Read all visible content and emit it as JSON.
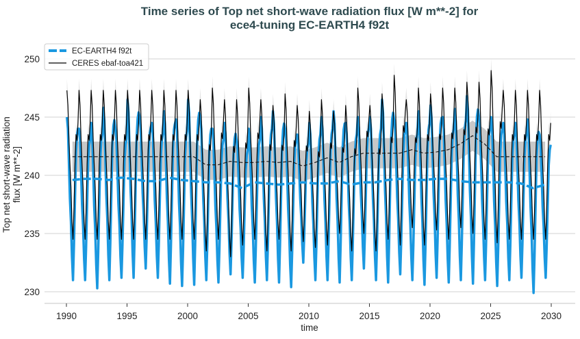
{
  "chart_data": {
    "type": "line",
    "title_lines": [
      "Time series of Top net short-wave radiation flux [W m**-2] for",
      "ece4-tuning EC-EARTH4 f92t"
    ],
    "xlabel": "time",
    "ylabel_lines": [
      "Top net short-wave radiation",
      "flux [W m**-2]"
    ],
    "xlim": [
      1988.8,
      2031.5
    ],
    "ylim": [
      229,
      251.5
    ],
    "xticks": [
      1990,
      1995,
      2000,
      2005,
      2010,
      2015,
      2020,
      2025,
      2030
    ],
    "yticks": [
      230,
      235,
      240,
      245,
      250
    ],
    "grid": "horizontal",
    "legend_placement": "top-left",
    "years": [
      1990,
      1991,
      1992,
      1993,
      1994,
      1995,
      1996,
      1997,
      1998,
      1999,
      2000,
      2001,
      2002,
      2003,
      2004,
      2005,
      2006,
      2007,
      2008,
      2009,
      2010,
      2011,
      2012,
      2013,
      2014,
      2015,
      2016,
      2017,
      2018,
      2019,
      2020,
      2021,
      2022,
      2023,
      2024,
      2025,
      2026,
      2027,
      2028,
      2029
    ],
    "series": [
      {
        "name": "EC-EARTH4 f92t",
        "color": "#1a98e0",
        "style": "monthly solid thick, annual mean dashed",
        "monthly_climatology_shape": [
          245,
          244,
          241,
          238,
          236,
          233,
          231,
          234,
          238,
          242,
          243.5,
          244
        ],
        "yearly_max": [
          245,
          244,
          244.5,
          245.8,
          244,
          246.5,
          245,
          244.5,
          245.5,
          244.8,
          246.5,
          245,
          244,
          244.5,
          243,
          244,
          245,
          245.5,
          244,
          243.5,
          244.5,
          245,
          245.5,
          244.5,
          245,
          245,
          246.5,
          244.8,
          244.5,
          245.5,
          246,
          245,
          245.7,
          246.8,
          245,
          245,
          244.5,
          244.5,
          244.8,
          243.5
        ],
        "yearly_min": [
          231,
          231,
          230.3,
          231,
          231.2,
          231.2,
          232,
          231.2,
          230.7,
          230.5,
          230.6,
          231,
          230.8,
          231.5,
          231.2,
          230.8,
          231,
          230.8,
          230.4,
          232.5,
          231,
          231,
          230.8,
          231,
          232,
          231,
          230.8,
          231.5,
          231,
          230.6,
          231.2,
          230.8,
          231,
          230.7,
          231,
          230.5,
          231,
          231.2,
          229.9,
          231.2
        ],
        "annual_mean": [
          239.6,
          239.7,
          239.7,
          239.6,
          239.8,
          239.7,
          239.5,
          239.5,
          239.8,
          239.6,
          239.5,
          239.4,
          239.4,
          239.3,
          238.9,
          239.4,
          239.3,
          239.2,
          239.3,
          239.4,
          239.3,
          239.3,
          239.5,
          239.2,
          239.4,
          239.4,
          239.6,
          239.7,
          239.6,
          239.6,
          239.7,
          239.7,
          239.5,
          239.4,
          239.4,
          239.4,
          239.4,
          239.3,
          238.9,
          239.2
        ]
      },
      {
        "name": "CERES ebaf-toa421",
        "color": "#000000",
        "style": "monthly solid thin, annual mean dashed, grey spread bands",
        "monthly_climatology_shape": [
          247.3,
          246,
          243,
          241,
          239,
          236,
          234.5,
          237,
          241,
          243.5,
          243,
          244.5
        ],
        "yearly_max": [
          247.3,
          247.3,
          247.3,
          247.3,
          247.3,
          247.3,
          247.3,
          247.3,
          247.3,
          247.3,
          247.3,
          246.5,
          247.5,
          246.5,
          246.5,
          247.5,
          246.5,
          246,
          247,
          246,
          245.5,
          246.5,
          245.5,
          246,
          247.5,
          246,
          247,
          248.6,
          246.5,
          247.5,
          247,
          247.5,
          247.5,
          248,
          248,
          249,
          247.3,
          247.3,
          247.3,
          247.3
        ],
        "yearly_min": [
          234.5,
          234.5,
          234.5,
          234.5,
          234.5,
          234.5,
          234.5,
          234.5,
          234.5,
          234.5,
          234.5,
          233.5,
          234.5,
          233,
          234,
          234.5,
          233.5,
          234.5,
          233.5,
          234.3,
          233.8,
          234,
          235,
          233.5,
          235,
          233.5,
          234.5,
          234,
          235.5,
          234,
          235.3,
          234.5,
          235.5,
          235,
          234.5,
          234.2,
          234.5,
          234.5,
          234.5,
          234.5
        ],
        "annual_mean": [
          241.6,
          241.6,
          241.6,
          241.6,
          241.6,
          241.6,
          241.6,
          241.6,
          241.6,
          241.6,
          241.6,
          240.9,
          240.9,
          241.2,
          241.1,
          241.1,
          241.2,
          241.1,
          241.2,
          240.8,
          241.1,
          241.5,
          241.1,
          241.6,
          241.9,
          241.9,
          241.9,
          241.9,
          242.2,
          241.9,
          242,
          242.2,
          242.7,
          243.4,
          242.7,
          241.6,
          241.6,
          241.6,
          241.6,
          241.6
        ],
        "monthly_std": 1.0,
        "annual_std": 1.3
      }
    ]
  }
}
